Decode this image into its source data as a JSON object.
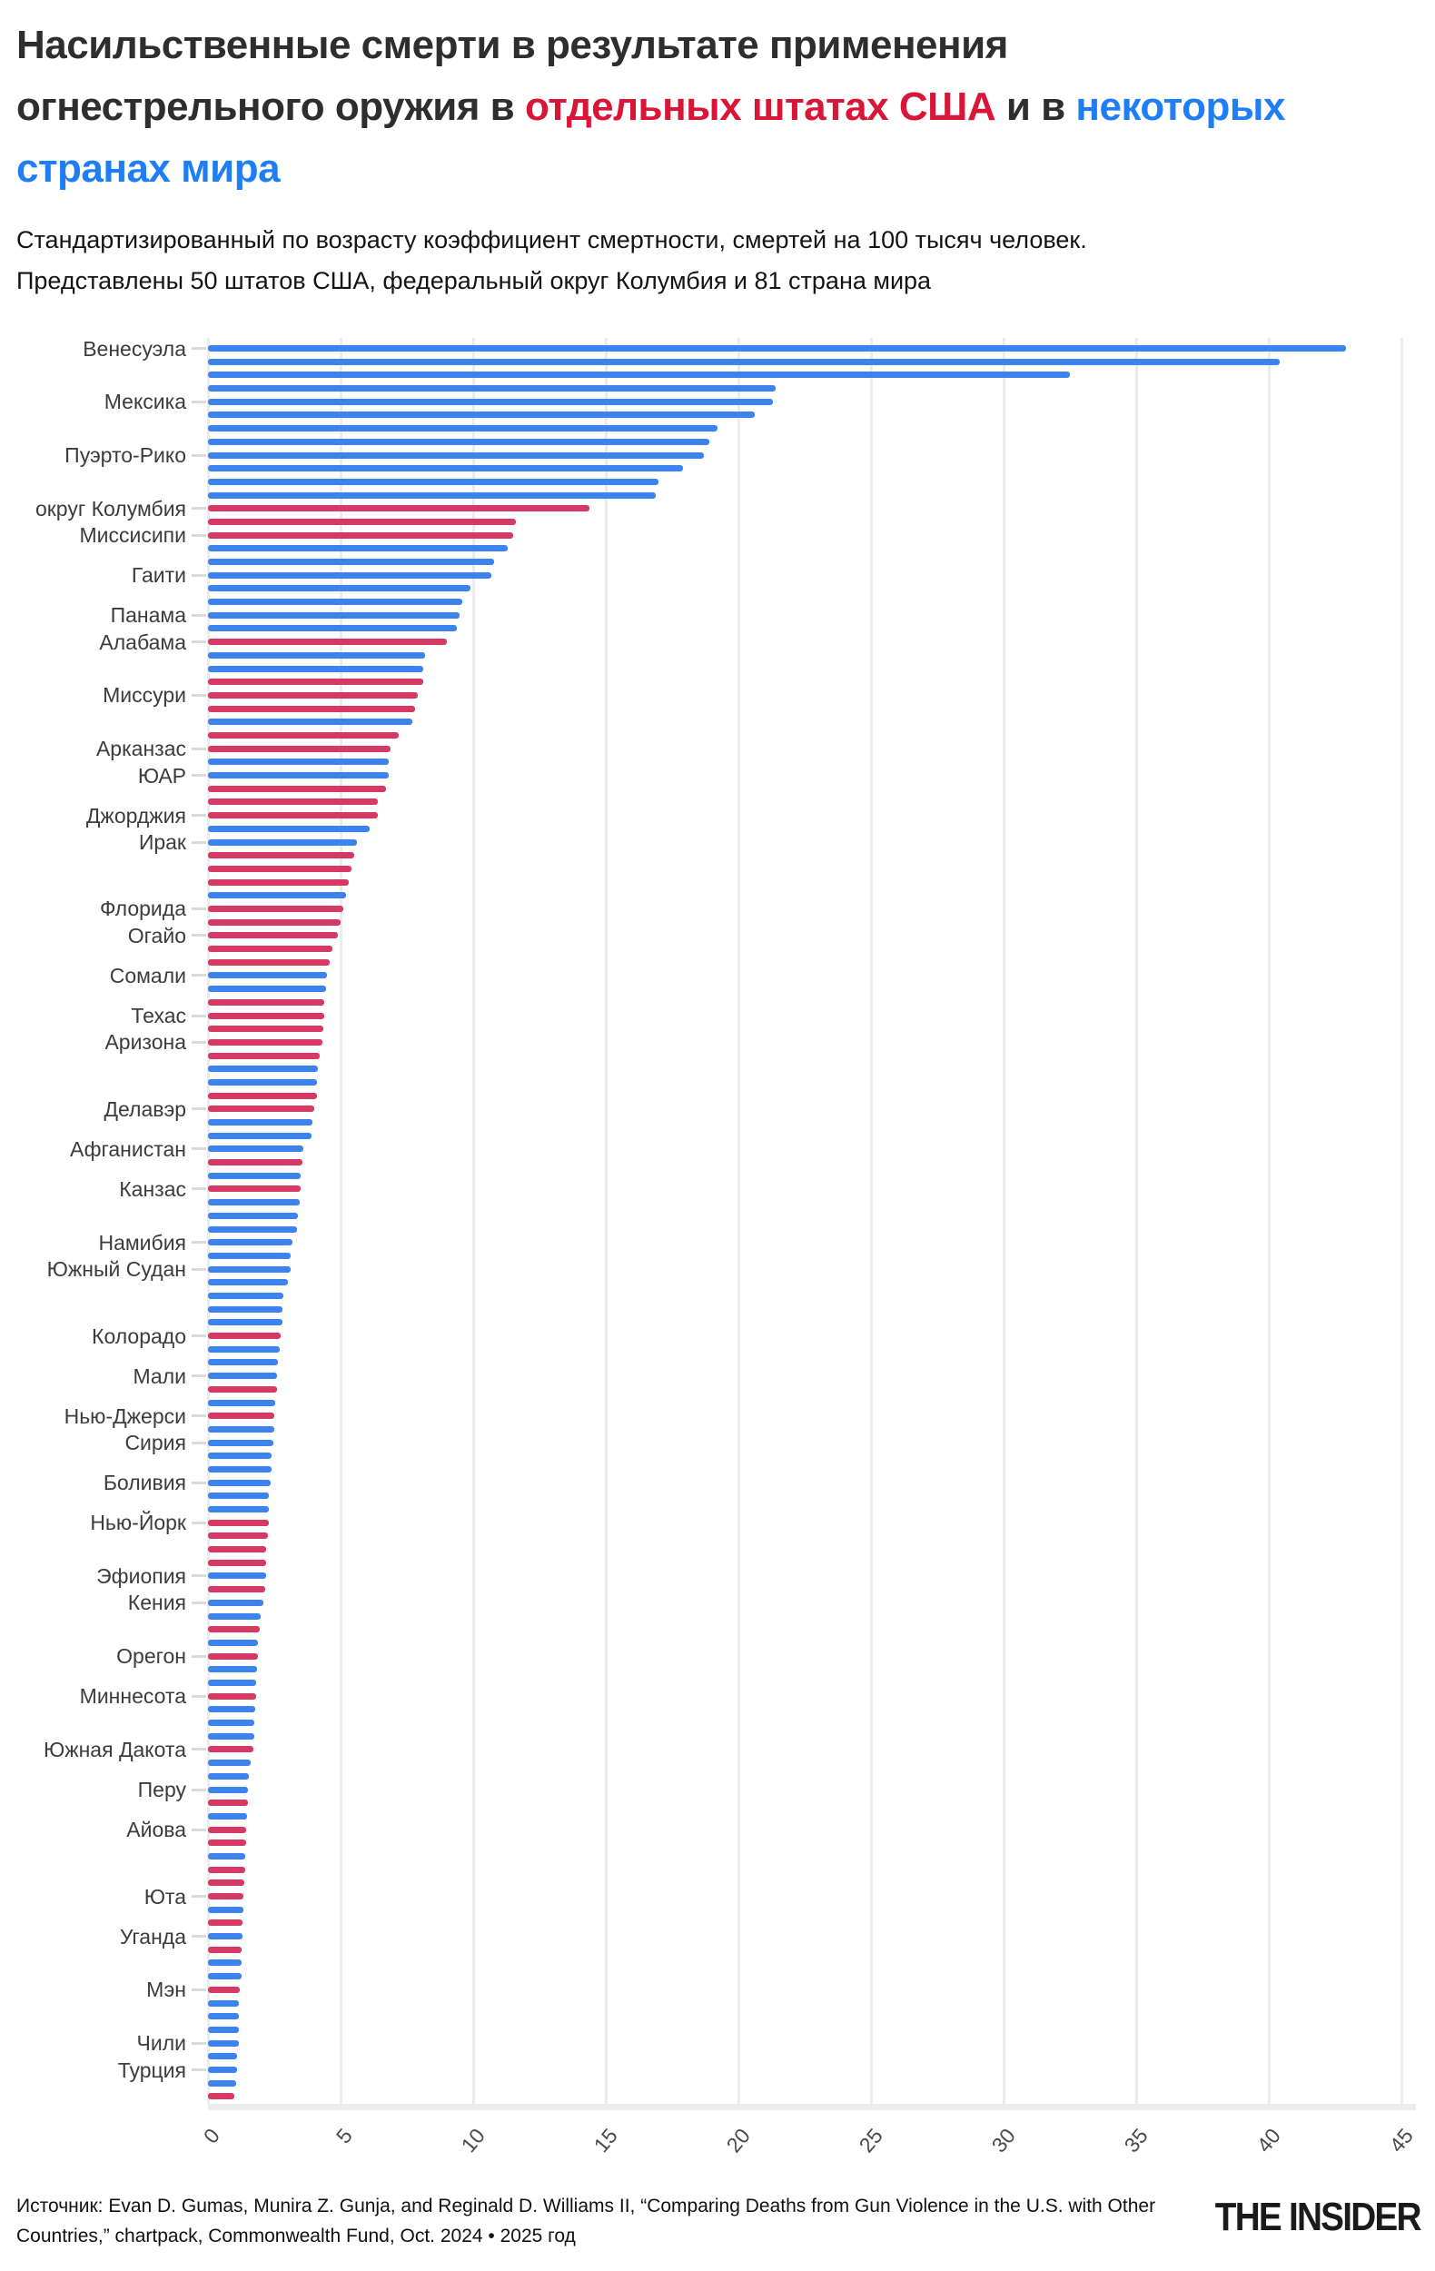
{
  "title": {
    "line1": "Насильственные смерти в результате применения",
    "line2_prefix": "огнестрельного оружия в ",
    "line2_red": "отдельных штатах США",
    "line2_mid": " и в ",
    "line2_blue": "некоторых",
    "line3_blue": "странах мира"
  },
  "subtitle": {
    "line1": "Стандартизированный по возрасту коэффициент смертности, смертей на 100 тысяч человек.",
    "line2": "Представлены 50 штатов США, федеральный округ Колумбия и 81 страна мира"
  },
  "footer": {
    "source": "Источник: Evan D. Gumas, Munira Z. Gunja, and Reginald D. Williams II, “Comparing Deaths from Gun Violence in the U.S. with Other Countries,” chartpack, Commonwealth Fund, Oct. 2024 • 2025 год",
    "brand": "THE INSIDER"
  },
  "colors": {
    "title_red": "#d91538",
    "title_blue": "#1f7ef5",
    "bar_state": "#d63a64",
    "bar_country": "#3c83f0",
    "gridline": "#ececec"
  },
  "chart_data": {
    "type": "bar",
    "orientation": "horizontal",
    "title": "Насильственные смерти в результате применения огнестрельного оружия в отдельных штатах США и в некоторых странах мира",
    "xlabel": "смертей на 100 тысяч человек",
    "ylabel": "",
    "xlim": [
      0,
      45
    ],
    "x_ticks": [
      0,
      5,
      10,
      15,
      20,
      25,
      30,
      35,
      40,
      45
    ],
    "grid": true,
    "legend": false,
    "series_colors": {
      "country": "#3c83f0",
      "state": "#d63a64"
    },
    "rows": [
      {
        "label": "Венесуэла",
        "value": 42.9,
        "group": "country"
      },
      {
        "label": "",
        "value": 40.4,
        "group": "country"
      },
      {
        "label": "",
        "value": 32.5,
        "group": "country"
      },
      {
        "label": "",
        "value": 21.4,
        "group": "country"
      },
      {
        "label": "Мексика",
        "value": 21.3,
        "group": "country"
      },
      {
        "label": "",
        "value": 20.6,
        "group": "country"
      },
      {
        "label": "",
        "value": 19.2,
        "group": "country"
      },
      {
        "label": "",
        "value": 18.9,
        "group": "country"
      },
      {
        "label": "Пуэрто-Рико",
        "value": 18.7,
        "group": "country"
      },
      {
        "label": "",
        "value": 17.9,
        "group": "country"
      },
      {
        "label": "",
        "value": 17.0,
        "group": "country"
      },
      {
        "label": "",
        "value": 16.9,
        "group": "country"
      },
      {
        "label": "округ Колумбия",
        "value": 14.4,
        "group": "state"
      },
      {
        "label": "",
        "value": 11.6,
        "group": "state"
      },
      {
        "label": "Миссисипи",
        "value": 11.5,
        "group": "state"
      },
      {
        "label": "",
        "value": 11.3,
        "group": "country"
      },
      {
        "label": "",
        "value": 10.8,
        "group": "country"
      },
      {
        "label": "Гаити",
        "value": 10.7,
        "group": "country"
      },
      {
        "label": "",
        "value": 9.9,
        "group": "country"
      },
      {
        "label": "",
        "value": 9.6,
        "group": "country"
      },
      {
        "label": "Панама",
        "value": 9.5,
        "group": "country"
      },
      {
        "label": "",
        "value": 9.4,
        "group": "country"
      },
      {
        "label": "Алабама",
        "value": 9.0,
        "group": "state"
      },
      {
        "label": "",
        "value": 8.2,
        "group": "country"
      },
      {
        "label": "",
        "value": 8.1,
        "group": "country"
      },
      {
        "label": "",
        "value": 8.1,
        "group": "state"
      },
      {
        "label": "Миссури",
        "value": 7.9,
        "group": "state"
      },
      {
        "label": "",
        "value": 7.8,
        "group": "state"
      },
      {
        "label": "",
        "value": 7.7,
        "group": "country"
      },
      {
        "label": "",
        "value": 7.2,
        "group": "state"
      },
      {
        "label": "Арканзас",
        "value": 6.9,
        "group": "state"
      },
      {
        "label": "",
        "value": 6.8,
        "group": "country"
      },
      {
        "label": "ЮАР",
        "value": 6.8,
        "group": "country"
      },
      {
        "label": "",
        "value": 6.7,
        "group": "state"
      },
      {
        "label": "",
        "value": 6.4,
        "group": "state"
      },
      {
        "label": "Джорджия",
        "value": 6.4,
        "group": "state"
      },
      {
        "label": "",
        "value": 6.1,
        "group": "country"
      },
      {
        "label": "Ирак",
        "value": 5.6,
        "group": "country"
      },
      {
        "label": "",
        "value": 5.5,
        "group": "state"
      },
      {
        "label": "",
        "value": 5.4,
        "group": "state"
      },
      {
        "label": "",
        "value": 5.3,
        "group": "state"
      },
      {
        "label": "",
        "value": 5.2,
        "group": "country"
      },
      {
        "label": "Флорида",
        "value": 5.1,
        "group": "state"
      },
      {
        "label": "",
        "value": 5.0,
        "group": "state"
      },
      {
        "label": "Огайо",
        "value": 4.9,
        "group": "state"
      },
      {
        "label": "",
        "value": 4.7,
        "group": "state"
      },
      {
        "label": "",
        "value": 4.6,
        "group": "state"
      },
      {
        "label": "Сомали",
        "value": 4.5,
        "group": "country"
      },
      {
        "label": "",
        "value": 4.45,
        "group": "country"
      },
      {
        "label": "",
        "value": 4.4,
        "group": "state"
      },
      {
        "label": "Техас",
        "value": 4.4,
        "group": "state"
      },
      {
        "label": "",
        "value": 4.35,
        "group": "state"
      },
      {
        "label": "Аризона",
        "value": 4.3,
        "group": "state"
      },
      {
        "label": "",
        "value": 4.2,
        "group": "state"
      },
      {
        "label": "",
        "value": 4.15,
        "group": "country"
      },
      {
        "label": "",
        "value": 4.1,
        "group": "country"
      },
      {
        "label": "",
        "value": 4.1,
        "group": "state"
      },
      {
        "label": "Делавэр",
        "value": 4.0,
        "group": "state"
      },
      {
        "label": "",
        "value": 3.95,
        "group": "country"
      },
      {
        "label": "",
        "value": 3.9,
        "group": "country"
      },
      {
        "label": "Афганистан",
        "value": 3.6,
        "group": "country"
      },
      {
        "label": "",
        "value": 3.55,
        "group": "state"
      },
      {
        "label": "",
        "value": 3.5,
        "group": "country"
      },
      {
        "label": "Канзас",
        "value": 3.5,
        "group": "state"
      },
      {
        "label": "",
        "value": 3.45,
        "group": "country"
      },
      {
        "label": "",
        "value": 3.4,
        "group": "country"
      },
      {
        "label": "",
        "value": 3.35,
        "group": "country"
      },
      {
        "label": "Намибия",
        "value": 3.2,
        "group": "country"
      },
      {
        "label": "",
        "value": 3.1,
        "group": "country"
      },
      {
        "label": "Южный Судан",
        "value": 3.1,
        "group": "country"
      },
      {
        "label": "",
        "value": 3.0,
        "group": "country"
      },
      {
        "label": "",
        "value": 2.85,
        "group": "country"
      },
      {
        "label": "",
        "value": 2.8,
        "group": "country"
      },
      {
        "label": "",
        "value": 2.8,
        "group": "country"
      },
      {
        "label": "Колорадо",
        "value": 2.75,
        "group": "state"
      },
      {
        "label": "",
        "value": 2.7,
        "group": "country"
      },
      {
        "label": "",
        "value": 2.65,
        "group": "country"
      },
      {
        "label": "Мали",
        "value": 2.6,
        "group": "country"
      },
      {
        "label": "",
        "value": 2.6,
        "group": "state"
      },
      {
        "label": "",
        "value": 2.55,
        "group": "country"
      },
      {
        "label": "Нью-Джерси",
        "value": 2.5,
        "group": "state"
      },
      {
        "label": "",
        "value": 2.5,
        "group": "country"
      },
      {
        "label": "Сирия",
        "value": 2.45,
        "group": "country"
      },
      {
        "label": "",
        "value": 2.4,
        "group": "country"
      },
      {
        "label": "",
        "value": 2.4,
        "group": "country"
      },
      {
        "label": "Боливия",
        "value": 2.35,
        "group": "country"
      },
      {
        "label": "",
        "value": 2.3,
        "group": "country"
      },
      {
        "label": "",
        "value": 2.3,
        "group": "country"
      },
      {
        "label": "Нью-Йорк",
        "value": 2.3,
        "group": "state"
      },
      {
        "label": "",
        "value": 2.25,
        "group": "state"
      },
      {
        "label": "",
        "value": 2.2,
        "group": "state"
      },
      {
        "label": "",
        "value": 2.2,
        "group": "state"
      },
      {
        "label": "Эфиопия",
        "value": 2.2,
        "group": "country"
      },
      {
        "label": "",
        "value": 2.15,
        "group": "state"
      },
      {
        "label": "Кения",
        "value": 2.1,
        "group": "country"
      },
      {
        "label": "",
        "value": 2.0,
        "group": "country"
      },
      {
        "label": "",
        "value": 1.95,
        "group": "state"
      },
      {
        "label": "",
        "value": 1.9,
        "group": "country"
      },
      {
        "label": "Орегон",
        "value": 1.9,
        "group": "state"
      },
      {
        "label": "",
        "value": 1.85,
        "group": "country"
      },
      {
        "label": "",
        "value": 1.8,
        "group": "country"
      },
      {
        "label": "Миннесота",
        "value": 1.8,
        "group": "state"
      },
      {
        "label": "",
        "value": 1.78,
        "group": "country"
      },
      {
        "label": "",
        "value": 1.76,
        "group": "country"
      },
      {
        "label": "",
        "value": 1.74,
        "group": "country"
      },
      {
        "label": "Южная Дакота",
        "value": 1.7,
        "group": "state"
      },
      {
        "label": "",
        "value": 1.6,
        "group": "country"
      },
      {
        "label": "",
        "value": 1.55,
        "group": "country"
      },
      {
        "label": "Перу",
        "value": 1.5,
        "group": "country"
      },
      {
        "label": "",
        "value": 1.5,
        "group": "state"
      },
      {
        "label": "",
        "value": 1.48,
        "group": "country"
      },
      {
        "label": "Айова",
        "value": 1.45,
        "group": "state"
      },
      {
        "label": "",
        "value": 1.45,
        "group": "state"
      },
      {
        "label": "",
        "value": 1.42,
        "group": "country"
      },
      {
        "label": "",
        "value": 1.4,
        "group": "state"
      },
      {
        "label": "",
        "value": 1.38,
        "group": "state"
      },
      {
        "label": "Юта",
        "value": 1.35,
        "group": "state"
      },
      {
        "label": "",
        "value": 1.32,
        "group": "country"
      },
      {
        "label": "",
        "value": 1.3,
        "group": "state"
      },
      {
        "label": "Уганда",
        "value": 1.3,
        "group": "country"
      },
      {
        "label": "",
        "value": 1.28,
        "group": "state"
      },
      {
        "label": "",
        "value": 1.27,
        "group": "country"
      },
      {
        "label": "",
        "value": 1.25,
        "group": "country"
      },
      {
        "label": "Мэн",
        "value": 1.2,
        "group": "state"
      },
      {
        "label": "",
        "value": 1.18,
        "group": "country"
      },
      {
        "label": "",
        "value": 1.17,
        "group": "country"
      },
      {
        "label": "",
        "value": 1.15,
        "group": "country"
      },
      {
        "label": "Чили",
        "value": 1.15,
        "group": "country"
      },
      {
        "label": "",
        "value": 1.1,
        "group": "country"
      },
      {
        "label": "Турция",
        "value": 1.1,
        "group": "country"
      },
      {
        "label": "",
        "value": 1.05,
        "group": "country"
      },
      {
        "label": "",
        "value": 1.0,
        "group": "state"
      }
    ]
  }
}
